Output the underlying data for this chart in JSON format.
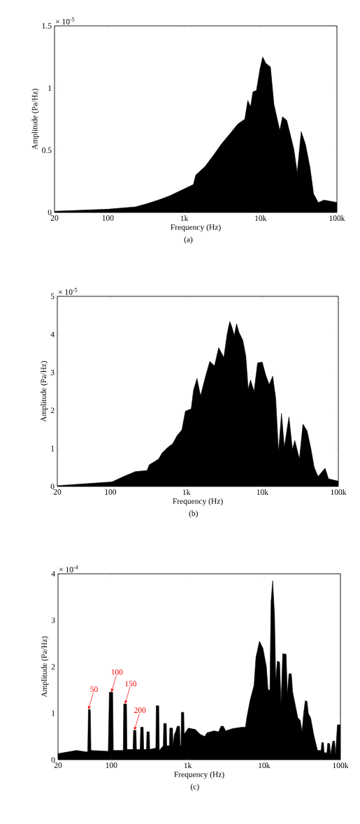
{
  "chart_data": [
    {
      "type": "area",
      "xlabel": "Frequency (Hz)",
      "ylabel": "Amplitude (Pa/Hz)",
      "color": "#000000",
      "log": "x",
      "xlim": [
        20,
        100000
      ],
      "ylim": [
        0,
        1.5
      ],
      "xticks": [
        20,
        100,
        {
          "value": 1000,
          "label": "1k"
        },
        {
          "value": 10000,
          "label": "10k"
        },
        {
          "value": 100000,
          "label": "100k"
        }
      ],
      "yticks": [
        0,
        0.5,
        1,
        1.5
      ],
      "x": [
        20,
        100,
        230,
        323,
        458,
        651,
        927,
        1000,
        1318,
        1413,
        1875,
        2483,
        3069,
        4064,
        5023,
        6209,
        6800,
        7390,
        7943,
        8816,
        9795,
        10660,
        11690,
        13460,
        14960,
        17830,
        19400,
        22030,
        27230,
        30200,
        34040,
        38640,
        44460,
        49430,
        56910,
        67900,
        100000
      ],
      "values": [
        0.01,
        0.026,
        0.045,
        0.07,
        0.1,
        0.135,
        0.18,
        0.19,
        0.225,
        0.3,
        0.37,
        0.47,
        0.55,
        0.64,
        0.71,
        0.75,
        0.9,
        0.85,
        0.97,
        0.98,
        1.15,
        1.25,
        1.2,
        1.17,
        0.87,
        0.66,
        0.77,
        0.74,
        0.51,
        0.32,
        0.65,
        0.55,
        0.36,
        0.15,
        0.08,
        0.1,
        0.08
      ],
      "annotations": [
        "× 10$^{-5}$",
        "(a)"
      ]
    },
    {
      "type": "area",
      "xlabel": "Frequency (Hz)",
      "ylabel": "Amplitude (Pa/Hz)",
      "color": "#000000",
      "log": "x",
      "xlim": [
        20,
        100000
      ],
      "ylim": [
        0,
        5
      ],
      "xticks": [
        20,
        100,
        {
          "value": 1000,
          "label": "1k"
        },
        {
          "value": 10000,
          "label": "10k"
        },
        {
          "value": 100000,
          "label": "100k"
        }
      ],
      "yticks": [
        0,
        1,
        2,
        3,
        4,
        5
      ],
      "x": [
        20,
        105,
        149,
        213,
        303,
        325,
        431,
        479,
        571,
        658,
        757,
        873,
        970,
        1157,
        1241,
        1380,
        1535,
        1767,
        2034,
        2344,
        2661,
        3107,
        3453,
        3730,
        3974,
        4265,
        4578,
        4910,
        5535,
        6068,
        6510,
        6990,
        7775,
        8648,
        9955,
        11070,
        12300,
        13680,
        14990,
        16310,
        17870,
        19450,
        22390,
        24890,
        26720,
        30770,
        34200,
        38820,
        43750,
        47970,
        54080,
        66830,
        74300,
        100000
      ],
      "values": [
        0.02,
        0.12,
        0.26,
        0.39,
        0.42,
        0.57,
        0.72,
        0.88,
        1.03,
        1.12,
        1.34,
        1.49,
        1.98,
        2.04,
        2.53,
        2.84,
        2.38,
        2.86,
        3.29,
        3.17,
        3.65,
        3.39,
        4.03,
        4.34,
        4.19,
        3.97,
        4.28,
        4.06,
        3.84,
        3.42,
        2.56,
        2.8,
        2.5,
        3.25,
        3.27,
        2.93,
        2.68,
        2.9,
        2.32,
        0.91,
        1.92,
        1.03,
        1.83,
        0.97,
        1.21,
        0.72,
        1.64,
        1.46,
        0.97,
        0.51,
        0.26,
        0.48,
        0.2,
        0.14
      ],
      "annotations": [
        "× 10$^{-5}$",
        "(b)"
      ]
    },
    {
      "type": "area",
      "xlabel": "Frequency (Hz)",
      "ylabel": "Amplitude (Pa/Hz)",
      "color": "#000000",
      "log": "x",
      "xlim": [
        20,
        100000
      ],
      "ylim": [
        0,
        4
      ],
      "xticks": [
        20,
        100,
        {
          "value": 1000,
          "label": "1k"
        },
        {
          "value": 10000,
          "label": "10k"
        },
        {
          "value": 100000,
          "label": "100k"
        }
      ],
      "yticks": [
        0,
        1,
        2,
        3,
        4
      ],
      "x": [
        20,
        35,
        46,
        49,
        50,
        53,
        54,
        91,
        94,
        104,
        106,
        143,
        145,
        158,
        160,
        192,
        195,
        210,
        213,
        238,
        242,
        261,
        265,
        288,
        292,
        314,
        318,
        382,
        387,
        418,
        424,
        478,
        485,
        524,
        531,
        574,
        582,
        633,
        642,
        670,
        694,
        728,
        781,
        798,
        815,
        826,
        887,
        899,
        1021,
        1259,
        1449,
        1668,
        1790,
        2208,
        2541,
        2727,
        2926,
        3141,
        3875,
        5131,
        5702,
        5904,
        6561,
        7393,
        7822,
        8690,
        9655,
        10720,
        11270,
        11920,
        12330,
        12960,
        13710,
        14200,
        14920,
        15990,
        16680,
        17530,
        19460,
        20170,
        21180,
        22740,
        23710,
        25820,
        27680,
        29720,
        31420,
        32980,
        34640,
        36640,
        37940,
        40700,
        45200,
        50200,
        55800,
        57000,
        59900,
        61200,
        66600,
        68000,
        72400,
        74000,
        79300,
        83900,
        86300,
        91200,
        100000
      ],
      "values": [
        0.13,
        0.2,
        0.17,
        0.17,
        1.08,
        1.08,
        0.2,
        0.18,
        1.45,
        1.45,
        0.2,
        0.2,
        1.2,
        1.2,
        0.22,
        0.22,
        0.63,
        0.63,
        0.22,
        0.22,
        0.7,
        0.7,
        0.22,
        0.22,
        0.6,
        0.6,
        0.22,
        0.25,
        1.16,
        1.16,
        0.2,
        0.3,
        0.78,
        0.78,
        0.3,
        0.3,
        0.68,
        0.68,
        0.3,
        0.55,
        0.6,
        0.72,
        0.72,
        0.3,
        0.3,
        1.02,
        1.02,
        0.55,
        0.68,
        0.65,
        0.55,
        0.5,
        0.58,
        0.62,
        0.6,
        0.72,
        0.72,
        0.62,
        0.67,
        0.7,
        0.7,
        0.88,
        1.28,
        1.6,
        2.2,
        2.55,
        2.4,
        2.0,
        1.5,
        1.5,
        3.4,
        3.85,
        3.1,
        1.7,
        2.12,
        2.1,
        1.2,
        2.28,
        2.27,
        1.4,
        1.85,
        1.85,
        1.45,
        1.15,
        0.9,
        0.85,
        0.6,
        1.0,
        1.27,
        1.25,
        1.0,
        0.9,
        0.5,
        0.2,
        0.2,
        0.37,
        0.37,
        0.15,
        0.15,
        0.35,
        0.35,
        0.1,
        0.4,
        0.4,
        0.1,
        0.75,
        0.75
      ],
      "annotations": [
        "× 10$^{-4}$",
        {
          "text": "50",
          "x": 50,
          "y": 1.08
        },
        {
          "text": "100",
          "x": 100,
          "y": 1.45
        },
        {
          "text": "150",
          "x": 151,
          "y": 1.2
        },
        {
          "text": "200",
          "x": 200,
          "y": 0.63
        },
        "(c)"
      ]
    }
  ]
}
